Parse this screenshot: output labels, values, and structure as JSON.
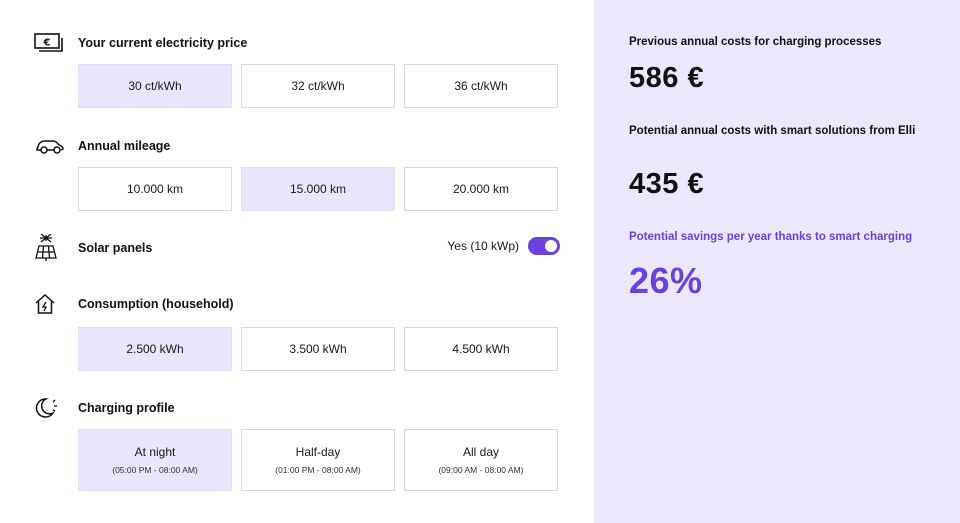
{
  "sections": {
    "electricity_price": {
      "title": "Your current electricity price",
      "icon": "euro-banknote-icon",
      "options": [
        "30 ct/kWh",
        "32 ct/kWh",
        "36 ct/kWh"
      ],
      "selected": "30 ct/kWh"
    },
    "annual_mileage": {
      "title": "Annual mileage",
      "icon": "car-icon",
      "options": [
        "10.000 km",
        "15.000 km",
        "20.000 km"
      ],
      "selected": "15.000 km"
    },
    "solar_panels": {
      "title": "Solar panels",
      "icon": "solar-panel-icon",
      "toggle_label": "Yes (10 kWp)",
      "toggle_on": true
    },
    "consumption": {
      "title": "Consumption (household)",
      "icon": "house-icon",
      "options": [
        "2.500 kWh",
        "3.500 kWh",
        "4.500 kWh"
      ],
      "selected": "2.500 kWh"
    },
    "charging_profile": {
      "title": "Charging profile",
      "icon": "moon-sun-icon",
      "options": [
        {
          "label": "At night",
          "hours": "(05:00 PM - 08:00 AM)"
        },
        {
          "label": "Half-day",
          "hours": "(01:00 PM - 08:00 AM)"
        },
        {
          "label": "All day",
          "hours": "(09:00 AM - 08:00 AM)"
        }
      ],
      "selected": "At night"
    }
  },
  "summary": {
    "previous_label": "Previous annual costs for charging processes",
    "previous_value": "586 €",
    "potential_label": "Potential annual costs with smart solutions from Elli",
    "potential_value": "435 €",
    "savings_label": "Potential savings per year thanks to smart charging",
    "savings_value": "26%"
  },
  "colors": {
    "accent": "#6b3fe0",
    "selected_bg": "#e9e5fa",
    "panel_bg": "#ece8fb",
    "border": "#d9d9de"
  }
}
